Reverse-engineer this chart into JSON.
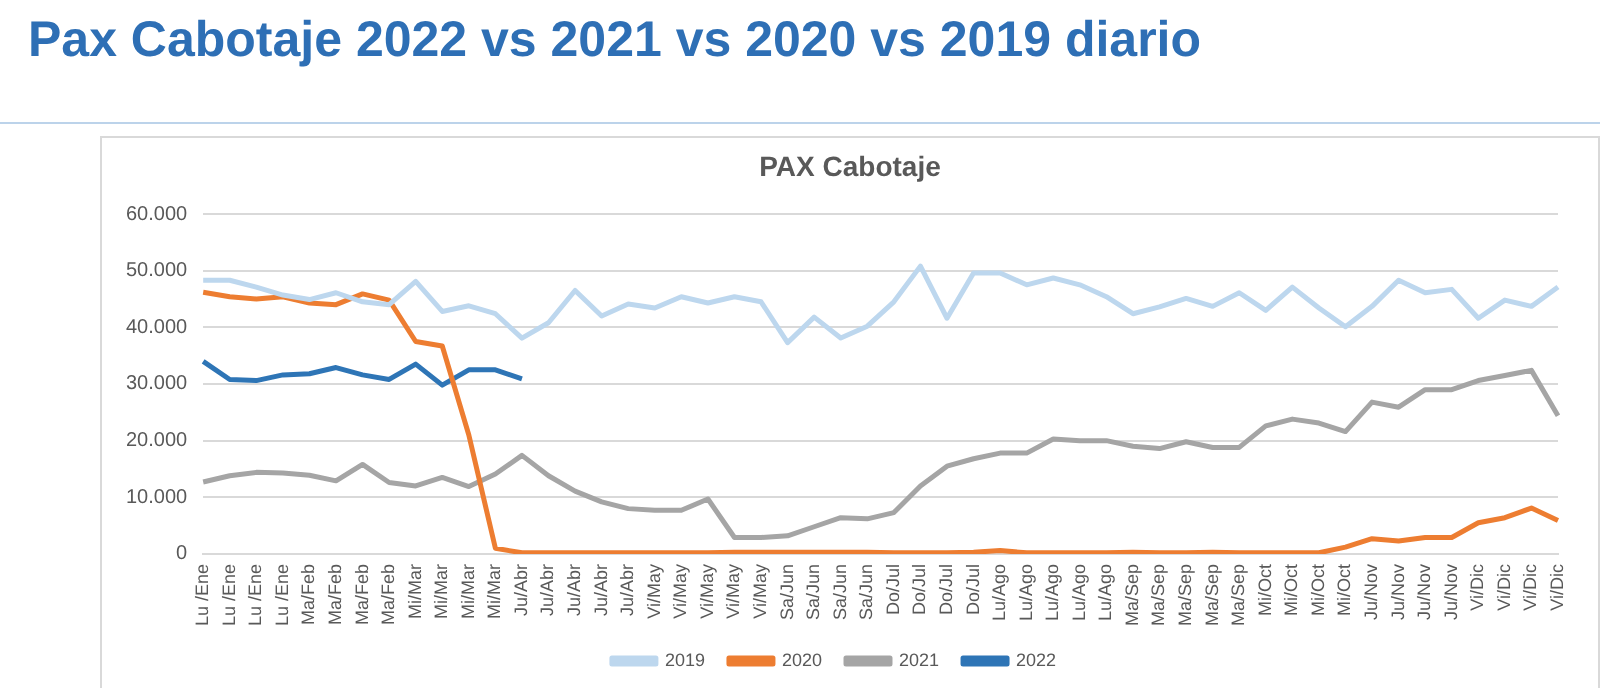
{
  "chart_data": {
    "type": "line",
    "title": "Pax Cabotaje 2022 vs 2021 vs 2020 vs 2019 diario",
    "subtitle": "PAX Cabotaje",
    "categories": [
      "Lu /Ene",
      "Lu /Ene",
      "Lu /Ene",
      "Lu /Ene",
      "Ma/Feb",
      "Ma/Feb",
      "Ma/Feb",
      "Ma/Feb",
      "Mi/Mar",
      "Mi/Mar",
      "Mi/Mar",
      "Mi/Mar",
      "Ju/Abr",
      "Ju/Abr",
      "Ju/Abr",
      "Ju/Abr",
      "Ju/Abr",
      "Vi/May",
      "Vi/May",
      "Vi/May",
      "Vi/May",
      "Vi/May",
      "Sa/Jun",
      "Sa/Jun",
      "Sa/Jun",
      "Sa/Jun",
      "Do/Jul",
      "Do/Jul",
      "Do/Jul",
      "Do/Jul",
      "Lu/Ago",
      "Lu/Ago",
      "Lu/Ago",
      "Lu/Ago",
      "Lu/Ago",
      "Ma/Sep",
      "Ma/Sep",
      "Ma/Sep",
      "Ma/Sep",
      "Ma/Sep",
      "Mi/Oct",
      "Mi/Oct",
      "Mi/Oct",
      "Mi/Oct",
      "Ju/Nov",
      "Ju/Nov",
      "Ju/Nov",
      "Ju/Nov",
      "Vi/Dic",
      "Vi/Dic",
      "Vi/Dic",
      "Vi/Dic"
    ],
    "series": [
      {
        "name": "2019",
        "color": "#bdd7ee",
        "values": [
          48300,
          48300,
          47100,
          45700,
          44900,
          46100,
          44500,
          44000,
          48100,
          42800,
          43800,
          42400,
          38100,
          40800,
          46500,
          42000,
          44100,
          43400,
          45400,
          44300,
          45400,
          44500,
          37300,
          41800,
          38100,
          40200,
          44500,
          50800,
          41600,
          49600,
          49600,
          47500,
          48700,
          47500,
          45400,
          42400,
          43600,
          45100,
          43700,
          46100,
          43000,
          47100,
          43400,
          40100,
          43700,
          48300,
          46100,
          46700,
          41600,
          44800,
          43700,
          47100
        ]
      },
      {
        "name": "2020",
        "color": "#ed7d31",
        "values": [
          46200,
          45400,
          45000,
          45400,
          44300,
          44000,
          45900,
          44800,
          37500,
          36700,
          21000,
          1000,
          200,
          200,
          200,
          200,
          200,
          200,
          200,
          200,
          300,
          300,
          300,
          300,
          300,
          300,
          200,
          200,
          200,
          300,
          600,
          200,
          200,
          200,
          200,
          300,
          200,
          200,
          300,
          200,
          200,
          200,
          200,
          1200,
          2700,
          2300,
          2900,
          2900,
          5500,
          6400,
          8100,
          5900
        ]
      },
      {
        "name": "2021",
        "color": "#a5a5a5",
        "values": [
          12700,
          13800,
          14400,
          14300,
          13900,
          12900,
          15800,
          12600,
          12000,
          13500,
          11900,
          14100,
          17400,
          13800,
          11100,
          9200,
          8000,
          7700,
          7700,
          9700,
          2900,
          2900,
          3200,
          4800,
          6400,
          6200,
          7300,
          12000,
          15500,
          16800,
          17800,
          17800,
          20300,
          20000,
          20000,
          19000,
          18600,
          19800,
          18800,
          18800,
          22600,
          23800,
          23100,
          21600,
          26800,
          25900,
          29000,
          29000,
          30600,
          31500,
          32400,
          24400
        ]
      },
      {
        "name": "2022",
        "color": "#2e75b6",
        "values": [
          34000,
          30800,
          30600,
          31600,
          31800,
          32900,
          31600,
          30800,
          33500,
          29800,
          32500,
          32500,
          30900,
          null,
          null,
          null,
          null,
          null,
          null,
          null,
          null,
          null,
          null,
          null,
          null,
          null,
          null,
          null,
          null,
          null,
          null,
          null,
          null,
          null,
          null,
          null,
          null,
          null,
          null,
          null,
          null,
          null,
          null,
          null,
          null,
          null,
          null,
          null,
          null,
          null,
          null,
          null
        ]
      }
    ],
    "ylim": [
      0,
      60000
    ],
    "yticks": [
      {
        "value": 0,
        "label": "0"
      },
      {
        "value": 10000,
        "label": "10.000"
      },
      {
        "value": 20000,
        "label": "20.000"
      },
      {
        "value": 30000,
        "label": "30.000"
      },
      {
        "value": 40000,
        "label": "40.000"
      },
      {
        "value": 50000,
        "label": "50.000"
      },
      {
        "value": 60000,
        "label": "60.000"
      }
    ],
    "grid": "y",
    "legend": "bottom",
    "marker": "none",
    "line_style": "solid"
  }
}
